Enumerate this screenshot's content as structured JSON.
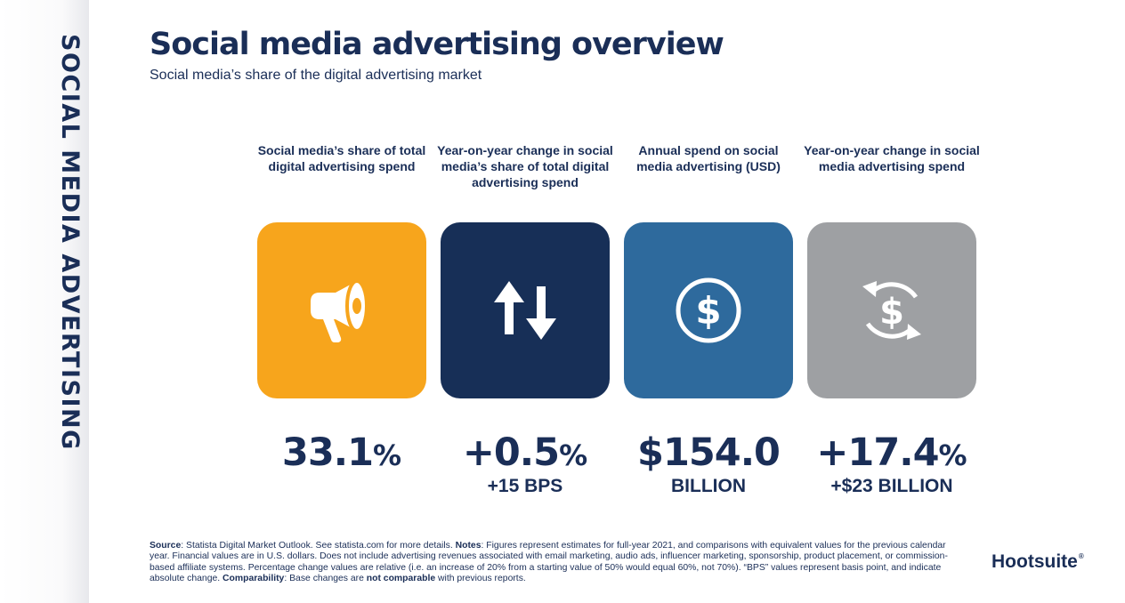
{
  "sidebar": {
    "title": "SOCIAL MEDIA ADVERTISING"
  },
  "header": {
    "title": "Social media advertising overview",
    "subtitle": "Social media’s share of the digital advertising market"
  },
  "stats": [
    {
      "heading": "Social media’s share of total digital advertising spend",
      "icon": "megaphone-icon",
      "color": "#f7a51c",
      "value": "33.1",
      "value_suffix": "%",
      "sub": ""
    },
    {
      "heading": "Year-on-year change in social media’s share of total digital advertising spend",
      "icon": "up-down-arrows-icon",
      "color": "#172f57",
      "value": "+0.5",
      "value_suffix": "%",
      "sub": "+15 BPS"
    },
    {
      "heading": "Annual spend on social media advertising (USD)",
      "icon": "dollar-circle-icon",
      "color": "#2e6a9d",
      "value": "$154.0",
      "value_suffix": "",
      "sub": "BILLION"
    },
    {
      "heading": "Year-on-year change in social media advertising spend",
      "icon": "dollar-refresh-icon",
      "color": "#9ea0a3",
      "value": "+17.4",
      "value_suffix": "%",
      "sub": "+$23 BILLION"
    }
  ],
  "footnote": {
    "source_label": "Source",
    "source_text": ": Statista Digital Market Outlook. See statista.com for more details. ",
    "notes_label": "Notes",
    "notes_text": ": Figures represent estimates for full-year 2021, and comparisons with equivalent values for the previous calendar year. Financial values are in U.S. dollars. Does not include advertising revenues associated with email marketing, audio ads, influencer marketing, sponsorship, product placement, or commission-based affiliate systems. Percentage change values are relative (i.e. an increase of 20% from a starting value of 50% would equal 60%, not 70%). “BPS” values represent basis point, and indicate absolute change. ",
    "comparability_label": "Comparability",
    "comparability_text": ": Base changes are ",
    "not_comparable": "not comparable",
    "comparability_end": " with previous reports."
  },
  "brand": {
    "name": "Hootsuite",
    "mark": "®"
  }
}
